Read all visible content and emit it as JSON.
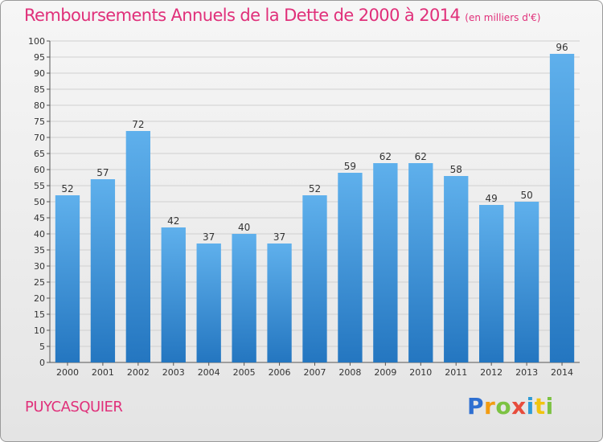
{
  "title": "Remboursements Annuels de la Dette de 2000 à 2014",
  "unit": "(en milliers d'€)",
  "commune": "PUYCASQUIER",
  "logo": {
    "text": "Proxiti",
    "letter_colors": [
      "#2e6fd1",
      "#f39c12",
      "#7cc242",
      "#e74c3c",
      "#2e9bd6",
      "#f1c40f",
      "#7cc242"
    ]
  },
  "colors": {
    "title": "#e0307a",
    "bar_top": "#5fb0ec",
    "bar_bottom": "#2476c0",
    "grid": "#d0d0d0"
  },
  "chart_data": {
    "type": "bar",
    "title": "Remboursements Annuels de la Dette de 2000 à 2014",
    "categories": [
      "2000",
      "2001",
      "2002",
      "2003",
      "2004",
      "2005",
      "2006",
      "2007",
      "2008",
      "2009",
      "2010",
      "2011",
      "2012",
      "2013",
      "2014"
    ],
    "values": [
      52,
      57,
      72,
      42,
      37,
      40,
      37,
      52,
      59,
      62,
      62,
      58,
      49,
      50,
      96
    ],
    "ylim": [
      0,
      100
    ],
    "ytick_step": 5,
    "grid": true,
    "xlabel": "",
    "ylabel": ""
  }
}
